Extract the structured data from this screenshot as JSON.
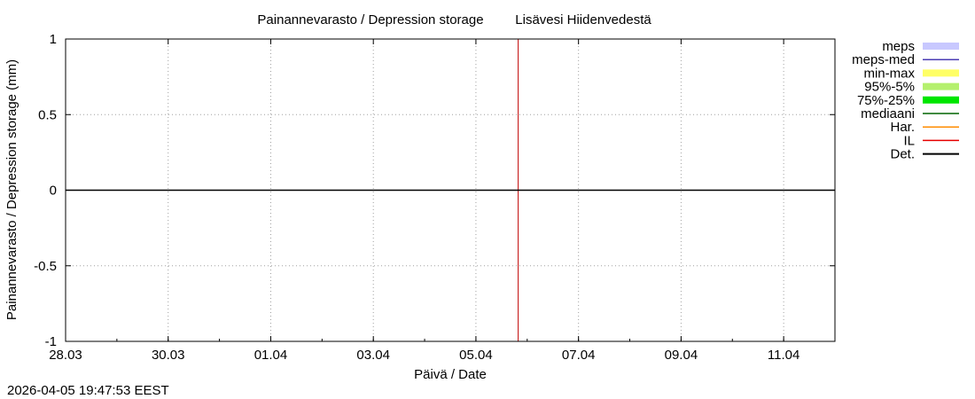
{
  "chart_data": {
    "type": "line",
    "title": "Painannevarasto / Depression storage",
    "subtitle": "Lisävesi Hiidenvedestä",
    "xlabel": "Päivä / Date",
    "ylabel": "Painannevarasto / Depression storage (mm)",
    "x_ticks": [
      "28.03",
      "30.03",
      "01.04",
      "03.04",
      "05.04",
      "07.04",
      "09.04",
      "11.04"
    ],
    "xlim": [
      "2026-03-28",
      "2026-04-12"
    ],
    "y_ticks": [
      1,
      0.5,
      0,
      -0.5,
      -1
    ],
    "y_tick_labels": [
      "1",
      "0.5",
      "0",
      "-0.5",
      "-1"
    ],
    "ylim": [
      -1,
      1
    ],
    "grid": true,
    "forecast_start": "2026-04-05T19:47",
    "legend_position": "right",
    "series": [
      {
        "name": "meps",
        "color": "#c8c8ff",
        "style": "band"
      },
      {
        "name": "meps-med",
        "color": "#4b3cb4",
        "style": "line"
      },
      {
        "name": "min-max",
        "color": "#ffff66",
        "style": "band"
      },
      {
        "name": "95%-5%",
        "color": "#b4f06e",
        "style": "band"
      },
      {
        "name": "75%-25%",
        "color": "#00e600",
        "style": "band"
      },
      {
        "name": "mediaani",
        "color": "#006400",
        "style": "line"
      },
      {
        "name": "Har.",
        "color": "#ff8c00",
        "style": "line"
      },
      {
        "name": "IL",
        "color": "#e60000",
        "style": "line"
      },
      {
        "name": "Det.",
        "color": "#000000",
        "style": "line",
        "points": [
          [
            "2026-03-28",
            0
          ],
          [
            "2026-04-12",
            0
          ]
        ]
      }
    ]
  },
  "footer": {
    "timestamp": "2026-04-05 19:47:53 EEST"
  }
}
